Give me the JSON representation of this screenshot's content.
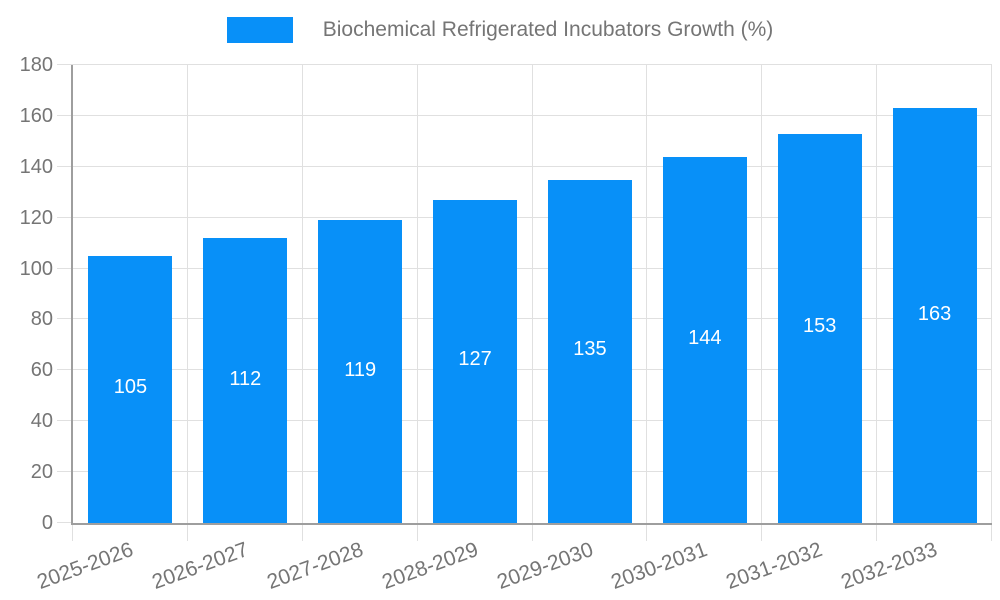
{
  "chart_data": {
    "type": "bar",
    "title": "Biochemical Refrigerated Incubators Growth (%)",
    "categories": [
      "2025-2026",
      "2026-2027",
      "2027-2028",
      "2028-2029",
      "2029-2030",
      "2030-2031",
      "2031-2032",
      "2032-2033"
    ],
    "values": [
      105,
      112,
      119,
      127,
      135,
      144,
      153,
      163
    ],
    "series_name": "Biochemical Refrigerated Incubators Growth (%)",
    "xlabel": "",
    "ylabel": "",
    "ylim": [
      0,
      180
    ],
    "ytick_step": 20,
    "ytick_labels": [
      "0",
      "20",
      "40",
      "60",
      "80",
      "100",
      "120",
      "140",
      "160",
      "180"
    ],
    "grid": true,
    "legend_position": "top-center",
    "value_labels_inside_bars": true,
    "colors": {
      "bar": "#0890f8",
      "value_label": "#ffffff",
      "grid": "#e0e0e0",
      "axis": "#9e9e9e",
      "tick_label": "#757575",
      "legend_text": "#757575",
      "background": "#ffffff"
    }
  }
}
